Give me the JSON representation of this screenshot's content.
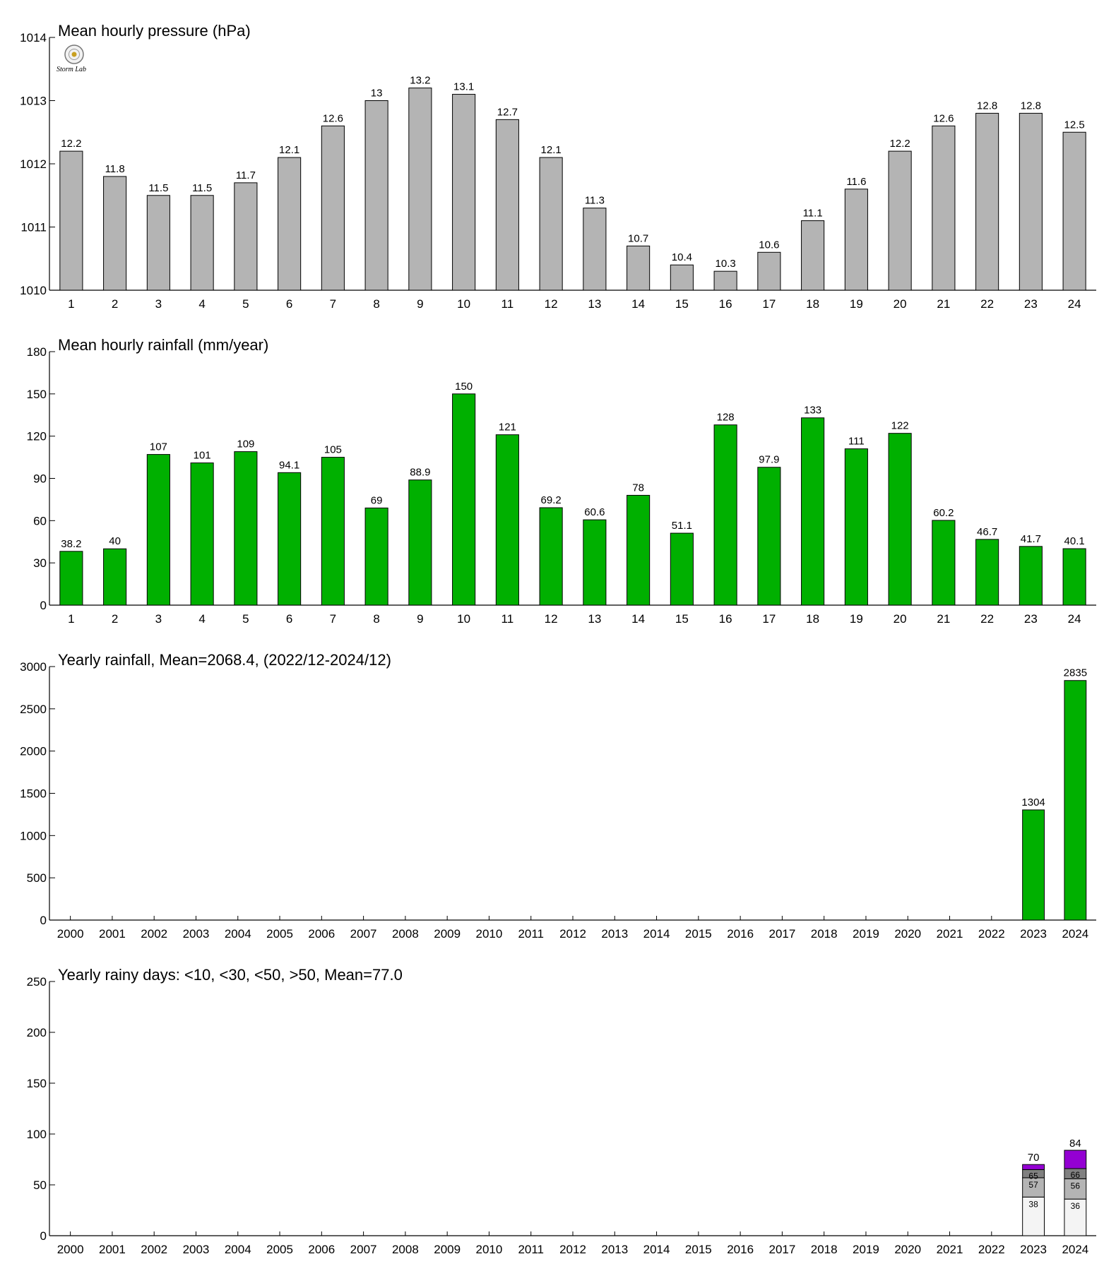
{
  "colors": {
    "pressure_bar": "#b4b4b4",
    "rain_bar": "#00b000",
    "axis": "#000000",
    "rainy_lt10": "#f4f4f4",
    "rainy_lt30": "#b4b4b4",
    "rainy_lt50": "#808080",
    "rainy_gt50": "#9400d3"
  },
  "logo": {
    "icon": "lab-seal-icon",
    "text": "Storm Lab"
  },
  "chart_data": [
    {
      "type": "bar",
      "title": "Mean hourly pressure (hPa)",
      "categories": [
        "1",
        "2",
        "3",
        "4",
        "5",
        "6",
        "7",
        "8",
        "9",
        "10",
        "11",
        "12",
        "13",
        "14",
        "15",
        "16",
        "17",
        "18",
        "19",
        "20",
        "21",
        "22",
        "23",
        "24"
      ],
      "values": [
        1012.2,
        1011.8,
        1011.5,
        1011.5,
        1011.7,
        1012.1,
        1012.6,
        1013.0,
        1013.2,
        1013.1,
        1012.7,
        1012.1,
        1011.3,
        1010.7,
        1010.4,
        1010.3,
        1010.6,
        1011.1,
        1011.6,
        1012.2,
        1012.6,
        1012.8,
        1012.8,
        1012.5
      ],
      "value_labels": [
        "12.2",
        "11.8",
        "11.5",
        "11.5",
        "11.7",
        "12.1",
        "12.6",
        "13",
        "13.2",
        "13.1",
        "12.7",
        "12.1",
        "11.3",
        "10.7",
        "10.4",
        "10.3",
        "10.6",
        "11.1",
        "11.6",
        "12.2",
        "12.6",
        "12.8",
        "12.8",
        "12.5"
      ],
      "ylim": [
        1010,
        1014
      ],
      "yticks": [
        "1010",
        "1011",
        "1012",
        "1013",
        "1014"
      ],
      "grid": false
    },
    {
      "type": "bar",
      "title": "Mean hourly rainfall (mm/year)",
      "categories": [
        "1",
        "2",
        "3",
        "4",
        "5",
        "6",
        "7",
        "8",
        "9",
        "10",
        "11",
        "12",
        "13",
        "14",
        "15",
        "16",
        "17",
        "18",
        "19",
        "20",
        "21",
        "22",
        "23",
        "24"
      ],
      "values": [
        38.2,
        40,
        107,
        101,
        109,
        94.1,
        105,
        69,
        88.9,
        150,
        121,
        69.2,
        60.6,
        78,
        51.1,
        128,
        97.9,
        133,
        111,
        122,
        60.2,
        46.7,
        41.7,
        40.1
      ],
      "value_labels": [
        "38.2",
        "40",
        "107",
        "101",
        "109",
        "94.1",
        "105",
        "69",
        "88.9",
        "150",
        "121",
        "69.2",
        "60.6",
        "78",
        "51.1",
        "128",
        "97.9",
        "133",
        "111",
        "122",
        "60.2",
        "46.7",
        "41.7",
        "40.1"
      ],
      "ylim": [
        0,
        180
      ],
      "yticks": [
        "0",
        "30",
        "60",
        "90",
        "120",
        "150",
        "180"
      ],
      "grid": false
    },
    {
      "type": "bar",
      "title": "Yearly rainfall, Mean=2068.4, (2022/12-2024/12)",
      "categories": [
        "2000",
        "2001",
        "2002",
        "2003",
        "2004",
        "2005",
        "2006",
        "2007",
        "2008",
        "2009",
        "2010",
        "2011",
        "2012",
        "2013",
        "2014",
        "2015",
        "2016",
        "2017",
        "2018",
        "2019",
        "2020",
        "2021",
        "2022",
        "2023",
        "2024"
      ],
      "values": [
        null,
        null,
        null,
        null,
        null,
        null,
        null,
        null,
        null,
        null,
        null,
        null,
        null,
        null,
        null,
        null,
        null,
        null,
        null,
        null,
        null,
        null,
        null,
        1304,
        2835
      ],
      "value_labels": [
        "",
        "",
        "",
        "",
        "",
        "",
        "",
        "",
        "",
        "",
        "",
        "",
        "",
        "",
        "",
        "",
        "",
        "",
        "",
        "",
        "",
        "",
        "",
        "1304",
        "2835"
      ],
      "ylim": [
        0,
        3000
      ],
      "yticks": [
        "0",
        "500",
        "1000",
        "1500",
        "2000",
        "2500",
        "3000"
      ],
      "grid": false
    },
    {
      "type": "bar",
      "stacked": true,
      "title": "Yearly rainy days: <10, <30, <50, >50, Mean=77.0",
      "categories": [
        "2000",
        "2001",
        "2002",
        "2003",
        "2004",
        "2005",
        "2006",
        "2007",
        "2008",
        "2009",
        "2010",
        "2011",
        "2012",
        "2013",
        "2014",
        "2015",
        "2016",
        "2017",
        "2018",
        "2019",
        "2020",
        "2021",
        "2022",
        "2023",
        "2024"
      ],
      "cumulative": {
        "lt10": [
          null,
          null,
          null,
          null,
          null,
          null,
          null,
          null,
          null,
          null,
          null,
          null,
          null,
          null,
          null,
          null,
          null,
          null,
          null,
          null,
          null,
          null,
          null,
          38,
          36
        ],
        "lt30": [
          null,
          null,
          null,
          null,
          null,
          null,
          null,
          null,
          null,
          null,
          null,
          null,
          null,
          null,
          null,
          null,
          null,
          null,
          null,
          null,
          null,
          null,
          null,
          57,
          56
        ],
        "lt50": [
          null,
          null,
          null,
          null,
          null,
          null,
          null,
          null,
          null,
          null,
          null,
          null,
          null,
          null,
          null,
          null,
          null,
          null,
          null,
          null,
          null,
          null,
          null,
          65,
          66
        ],
        "total": [
          null,
          null,
          null,
          null,
          null,
          null,
          null,
          null,
          null,
          null,
          null,
          null,
          null,
          null,
          null,
          null,
          null,
          null,
          null,
          null,
          null,
          null,
          null,
          70,
          84
        ]
      },
      "ylim": [
        0,
        250
      ],
      "yticks": [
        "0",
        "50",
        "100",
        "150",
        "200",
        "250"
      ],
      "grid": false
    }
  ]
}
